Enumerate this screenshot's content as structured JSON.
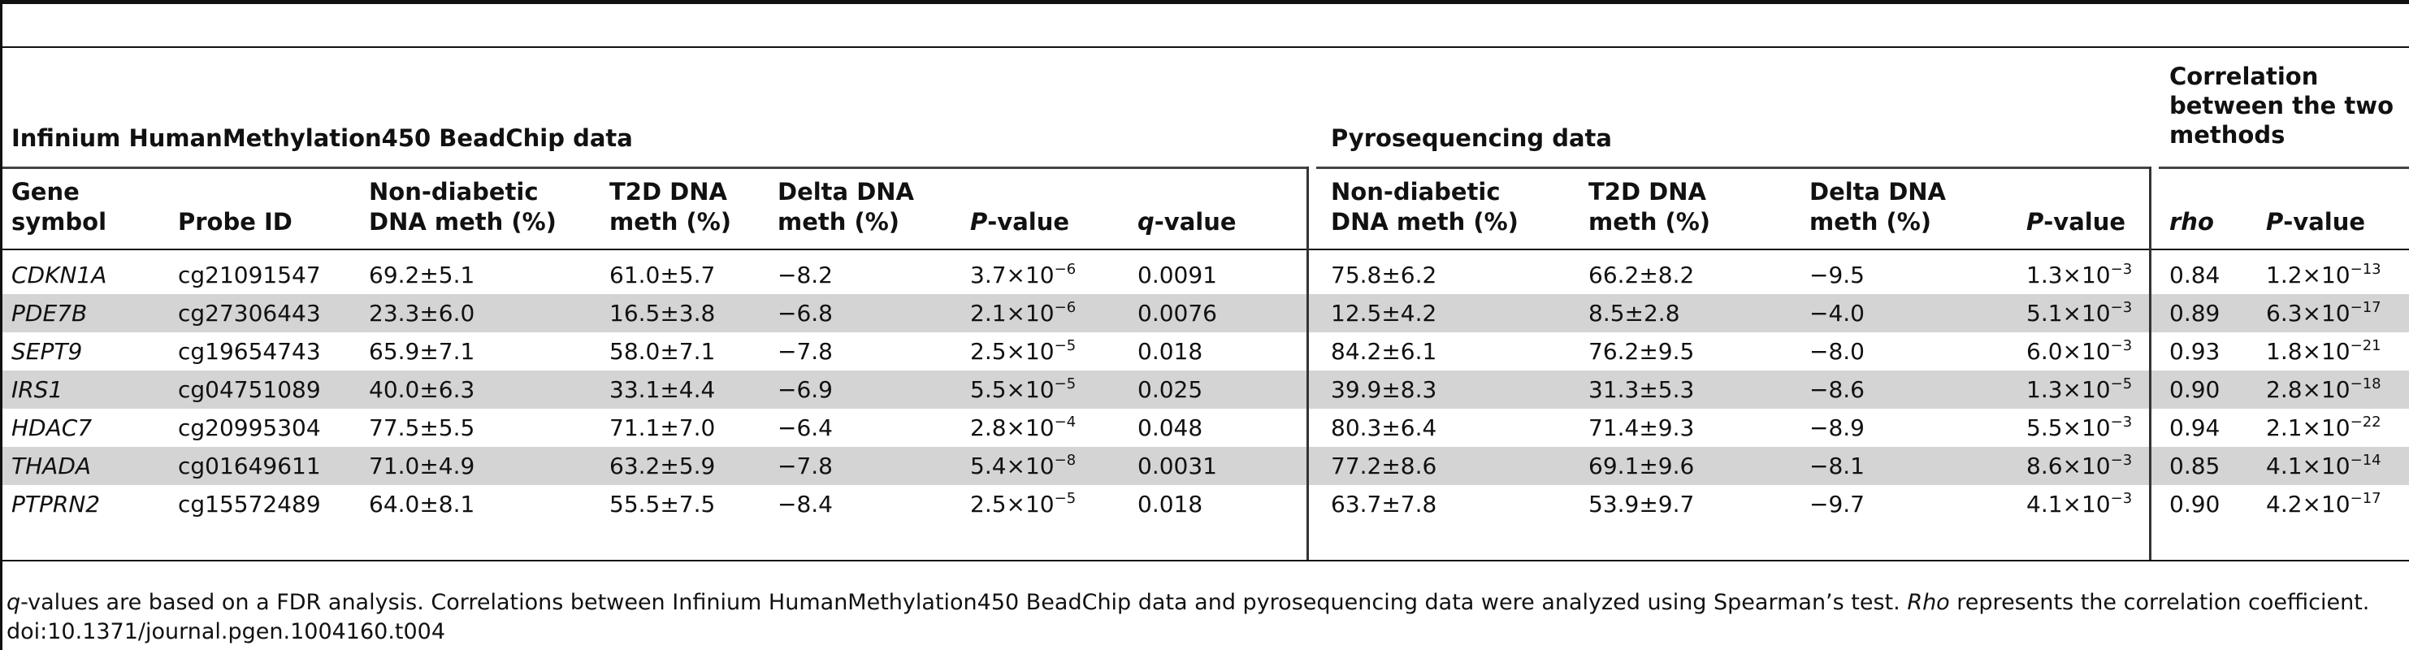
{
  "groups": {
    "infinium": "Infinium HumanMethylation450 BeadChip data",
    "pyro": "Pyrosequencing data",
    "correlation": [
      "Correlation",
      "between the two",
      "methods"
    ]
  },
  "columns": [
    [
      "Gene",
      "symbol"
    ],
    [
      "Probe ID"
    ],
    [
      "Non-diabetic",
      "DNA meth (%)"
    ],
    [
      "T2D DNA",
      "meth (%)"
    ],
    [
      "Delta DNA",
      "meth (%)"
    ],
    [
      "P-value"
    ],
    [
      "q-value"
    ],
    [
      "Non-diabetic",
      "DNA meth (%)"
    ],
    [
      "T2D DNA",
      "meth (%)"
    ],
    [
      "Delta DNA",
      "meth (%)"
    ],
    [
      "P-value"
    ],
    [
      "rho"
    ],
    [
      "P-value"
    ]
  ],
  "rows": [
    [
      "CDKN1A",
      "cg21091547",
      "69.2±5.1",
      "61.0±5.7",
      "−8.2",
      "3.7×10",
      "−6",
      "0.0091",
      "75.8±6.2",
      "66.2±8.2",
      "−9.5",
      "1.3×10",
      "−3",
      "0.84",
      "1.2×10",
      "−13"
    ],
    [
      "PDE7B",
      "cg27306443",
      "23.3±6.0",
      "16.5±3.8",
      "−6.8",
      "2.1×10",
      "−6",
      "0.0076",
      "12.5±4.2",
      "8.5±2.8",
      "−4.0",
      "5.1×10",
      "−3",
      "0.89",
      "6.3×10",
      "−17"
    ],
    [
      "SEPT9",
      "cg19654743",
      "65.9±7.1",
      "58.0±7.1",
      "−7.8",
      "2.5×10",
      "−5",
      "0.018",
      "84.2±6.1",
      "76.2±9.5",
      "−8.0",
      "6.0×10",
      "−3",
      "0.93",
      "1.8×10",
      "−21"
    ],
    [
      "IRS1",
      "cg04751089",
      "40.0±6.3",
      "33.1±4.4",
      "−6.9",
      "5.5×10",
      "−5",
      "0.025",
      "39.9±8.3",
      "31.3±5.3",
      "−8.6",
      "1.3×10",
      "−5",
      "0.90",
      "2.8×10",
      "−18"
    ],
    [
      "HDAC7",
      "cg20995304",
      "77.5±5.5",
      "71.1±7.0",
      "−6.4",
      "2.8×10",
      "−4",
      "0.048",
      "80.3±6.4",
      "71.4±9.3",
      "−8.9",
      "5.5×10",
      "−3",
      "0.94",
      "2.1×10",
      "−22"
    ],
    [
      "THADA",
      "cg01649611",
      "71.0±4.9",
      "63.2±5.9",
      "−7.8",
      "5.4×10",
      "−8",
      "0.0031",
      "77.2±8.6",
      "69.1±9.6",
      "−8.1",
      "8.6×10",
      "−3",
      "0.85",
      "4.1×10",
      "−14"
    ],
    [
      "PTPRN2",
      "cg15572489",
      "64.0±8.1",
      "55.5±7.5",
      "−8.4",
      "2.5×10",
      "−5",
      "0.018",
      "63.7±7.8",
      "53.9±9.7",
      "−9.7",
      "4.1×10",
      "−3",
      "0.90",
      "4.2×10",
      "−17"
    ]
  ],
  "footnote": {
    "q": "q",
    "line1_rest": "-values are based on a FDR analysis. Correlations between Infinium HumanMethylation450 BeadChip data and pyrosequencing data were analyzed using Spearman’s test. ",
    "rho": "Rho",
    "line1_end": " represents the correlation coefficient.",
    "doi": "doi:10.1371/journal.pgen.1004160.t004"
  }
}
